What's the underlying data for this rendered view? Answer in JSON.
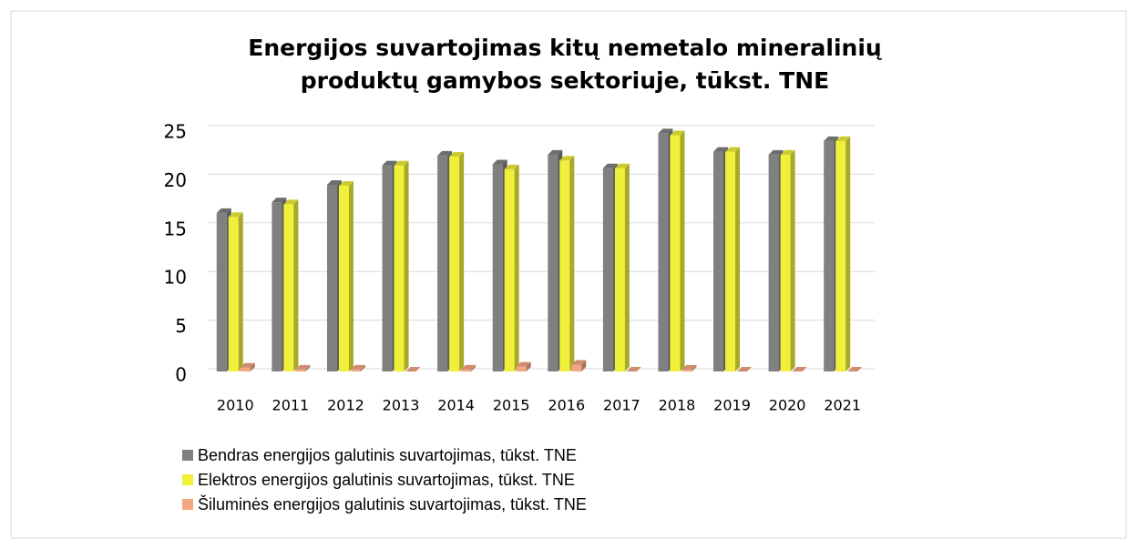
{
  "chart_data": {
    "type": "bar3d",
    "title": [
      "Energijos suvartojimas kitų nemetalo mineralinių",
      "produktų gamybos sektoriuje, tūkst. TNE"
    ],
    "categories": [
      "2010",
      "2011",
      "2012",
      "2013",
      "2014",
      "2015",
      "2016",
      "2017",
      "2018",
      "2019",
      "2020",
      "2021"
    ],
    "series": [
      {
        "name": "Bendras energijos galutinis suvartojimas, tūkst. TNE",
        "color": "#808080",
        "values": [
          16.3,
          17.4,
          19.2,
          21.2,
          22.2,
          21.3,
          22.3,
          20.9,
          24.5,
          22.6,
          22.3,
          23.7
        ]
      },
      {
        "name": "Elektros energijos galutinis suvartojimas, tūkst. TNE",
        "color": "#f0f03a",
        "values": [
          15.9,
          17.2,
          19.1,
          21.2,
          22.1,
          20.8,
          21.7,
          20.9,
          24.3,
          22.6,
          22.3,
          23.7
        ]
      },
      {
        "name": "Šiluminės energijos galutinis suvartojimas, tūkst. TNE",
        "color": "#f4a582",
        "values": [
          0.4,
          0.2,
          0.2,
          0,
          0.2,
          0.5,
          0.7,
          0,
          0.2,
          0,
          0,
          0
        ]
      }
    ],
    "ylim": [
      0,
      25
    ],
    "yticks": [
      0,
      5,
      10,
      15,
      20,
      25
    ],
    "grid": true,
    "legend": "bottom-left"
  }
}
